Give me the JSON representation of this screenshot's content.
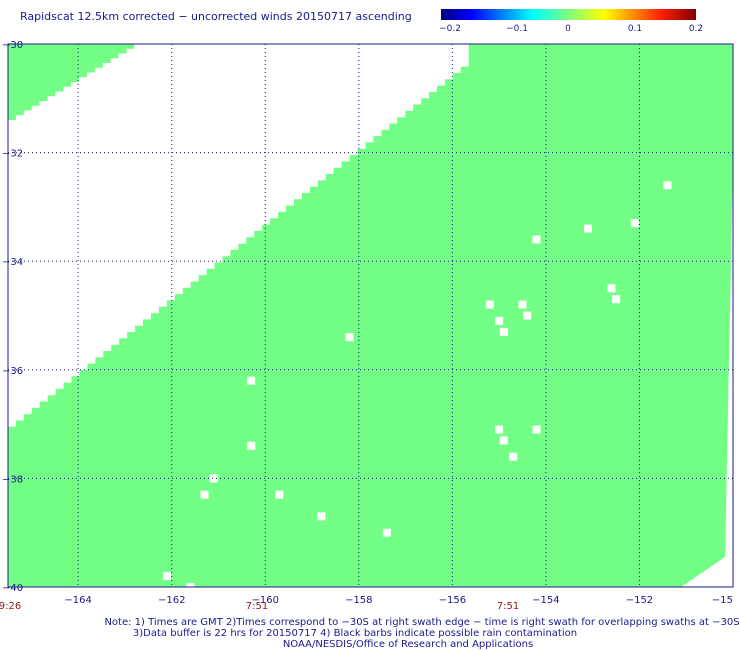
{
  "chart_data": {
    "type": "heatmap",
    "title": "Rapidscat 12.5km corrected − uncorrected winds 20150717 ascending",
    "colorbar": {
      "ticks": [
        "−0.2",
        "−0.1",
        "0",
        "0.1",
        "0.2"
      ],
      "range": [
        -0.2,
        0.2
      ]
    },
    "xlim": [
      -165.5,
      -150
    ],
    "ylim": [
      -40,
      -30
    ],
    "x_ticks": [
      "−164",
      "−162",
      "−160",
      "−158",
      "−156",
      "−154",
      "−152",
      "−15"
    ],
    "y_ticks": [
      "−30",
      "−32",
      "−34",
      "−36",
      "−38",
      "−40"
    ],
    "times": [
      "9:26",
      "7:51",
      "7:51"
    ],
    "grid": true,
    "fill_value": 0,
    "fill_color": "#73ff85",
    "swaths": [
      {
        "name": "main",
        "edge_top": [
          -155.65,
          -30.3
        ],
        "edge_bottom": [
          -165.5,
          -37.05
        ]
      },
      {
        "name": "corner",
        "edge_top": [
          -162.8,
          -30.0
        ],
        "edge_bottom": [
          -165.5,
          -31.4
        ]
      }
    ],
    "missing_cells": [
      [
        -160.3,
        -36.2
      ],
      [
        -160.3,
        -37.4
      ],
      [
        -161.1,
        -38.0
      ],
      [
        -161.3,
        -38.3
      ],
      [
        -158.2,
        -35.4
      ],
      [
        -159.7,
        -38.3
      ],
      [
        -158.8,
        -38.7
      ],
      [
        -157.4,
        -39.0
      ],
      [
        -155.2,
        -34.8
      ],
      [
        -155.0,
        -35.1
      ],
      [
        -154.9,
        -35.3
      ],
      [
        -154.5,
        -34.8
      ],
      [
        -154.4,
        -35.0
      ],
      [
        -154.2,
        -33.6
      ],
      [
        -153.1,
        -33.4
      ],
      [
        -152.6,
        -34.5
      ],
      [
        -152.5,
        -34.7
      ],
      [
        -152.1,
        -33.3
      ],
      [
        -151.4,
        -32.6
      ],
      [
        -154.2,
        -37.1
      ],
      [
        -155.0,
        -37.1
      ],
      [
        -154.9,
        -37.3
      ],
      [
        -154.7,
        -37.6
      ],
      [
        -162.1,
        -39.8
      ],
      [
        -161.6,
        -40.0
      ]
    ],
    "notes": [
      "Note: 1) Times are GMT 2)Times correspond to −30S at right swath edge − time is right swath for overlapping swaths at −30S",
      "3)Data buffer is 22 hrs for 20150717 4) Black barbs indicate possible rain contamination",
      "NOAA/NESDIS/Office of Research and Applications"
    ]
  }
}
